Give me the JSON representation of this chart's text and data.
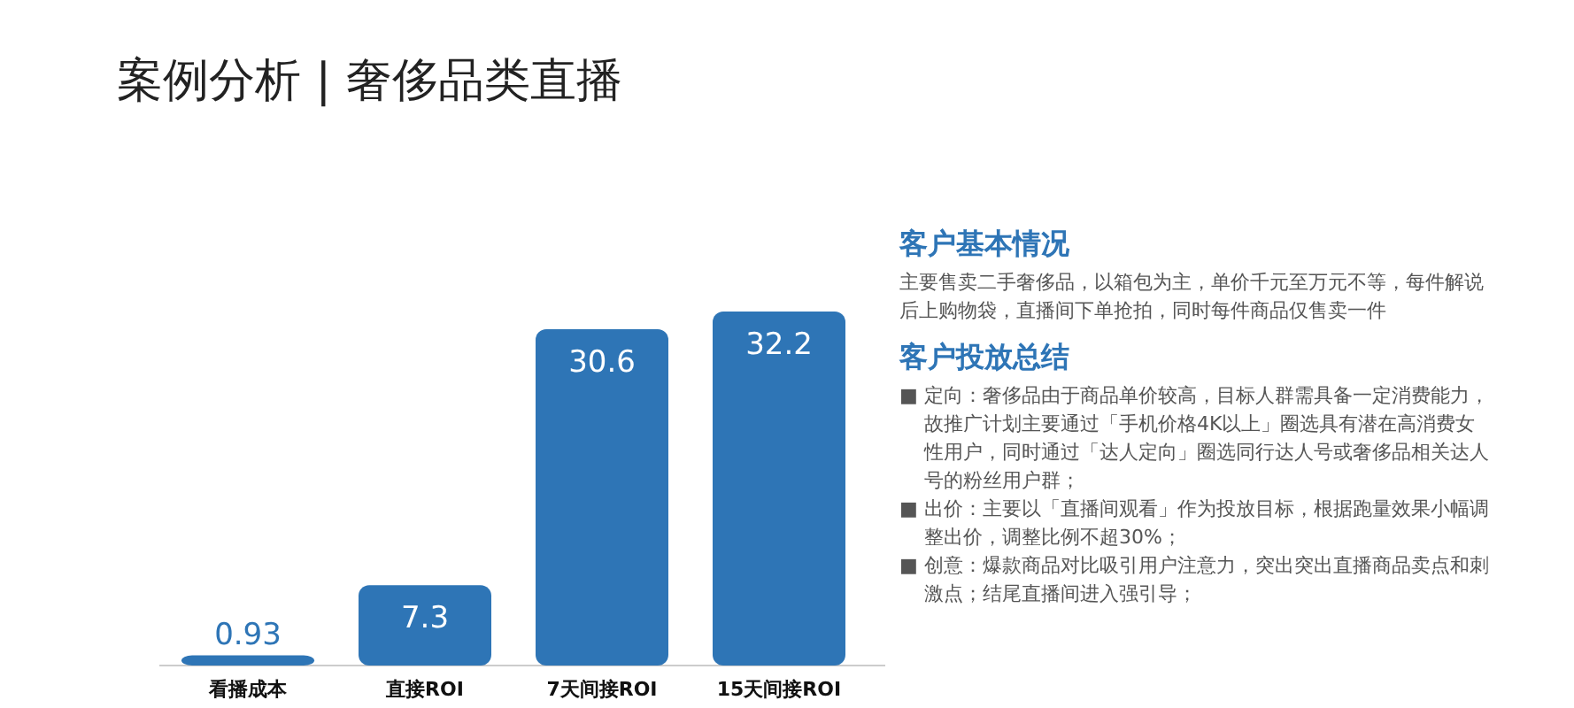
{
  "chart_data": [
    {
      "type": "bar",
      "title": "案例分析 | 奢侈品类直播",
      "categories": [
        "看播成本",
        "直接ROI",
        "7天间接ROI",
        "15天间接ROI"
      ],
      "values": [
        0.93,
        7.3,
        30.6,
        32.2
      ],
      "color": "#2e75b6",
      "data_labels": true
    },
    {
      "type": "other",
      "title": "客户基本情况",
      "annotations": [
        "主要售卖二手奢侈品，以箱包为主，单价千元至万元不等，每件解说后上购物袋，直播间下单抢拍，同时每件商品仅售卖一件"
      ]
    },
    {
      "type": "other",
      "title": "客户投放总结",
      "annotations": [
        "■ 定向：奢侈品由于商品单价较高，目标人群需具备一定消费能力，故推广计划主要通过「手机价格4K以上」圈选具有潜在高消费女性用户，同时通过「达人定向」圈选同行达人号或奢侈品相关达人号的粉丝用户群；",
        "■ 出价：主要以「直播间观看」作为投放目标，根据跑量效果小幅调整出价，调整比例不超30%；",
        "■ 创意：爆款商品对比吸引用户注意力，突出突出直播商品卖点和刺激点；结尾直播间进入强引导；"
      ]
    }
  ]
}
